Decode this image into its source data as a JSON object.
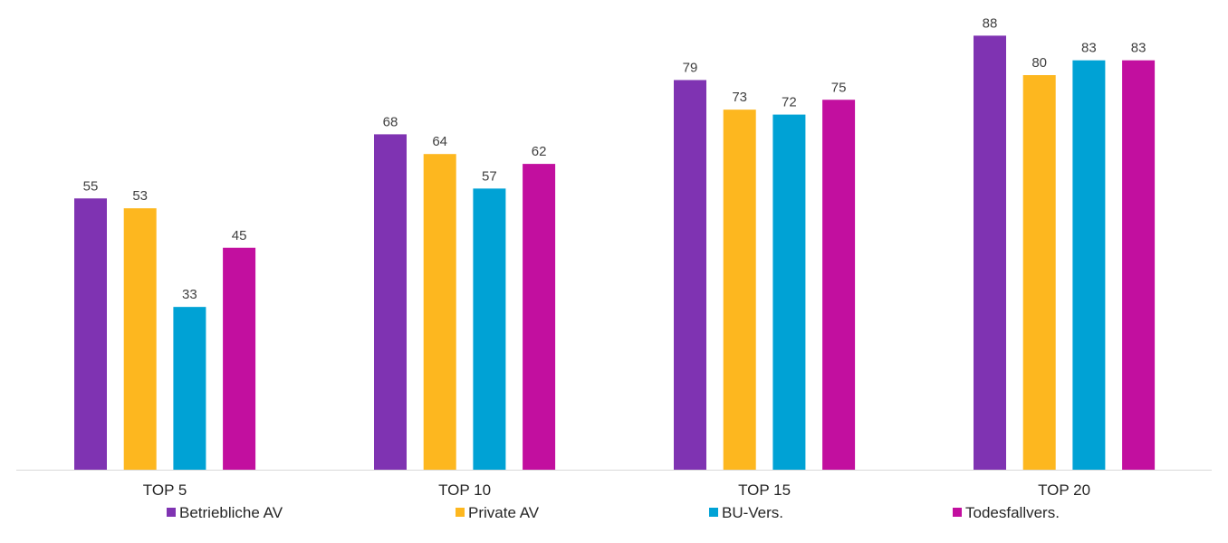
{
  "chart_data": {
    "type": "bar",
    "title": "",
    "xlabel": "",
    "ylabel": "",
    "categories": [
      "TOP 5",
      "TOP 10",
      "TOP 15",
      "TOP 20"
    ],
    "series": [
      {
        "name": "Betriebliche AV",
        "color": "#7f33b2",
        "values": [
          55,
          68,
          79,
          88
        ]
      },
      {
        "name": "Private AV",
        "color": "#fdb71f",
        "values": [
          53,
          64,
          73,
          80
        ]
      },
      {
        "name": "BU-Vers.",
        "color": "#00a2d5",
        "values": [
          33,
          57,
          72,
          83
        ]
      },
      {
        "name": "Todesfallvers.",
        "color": "#c20f9f",
        "values": [
          45,
          62,
          75,
          83
        ]
      }
    ],
    "ylim": [
      0,
      100
    ],
    "grid": false,
    "legend_position": "bottom",
    "data_labels": true,
    "axis_color": "#d9d9d9"
  }
}
